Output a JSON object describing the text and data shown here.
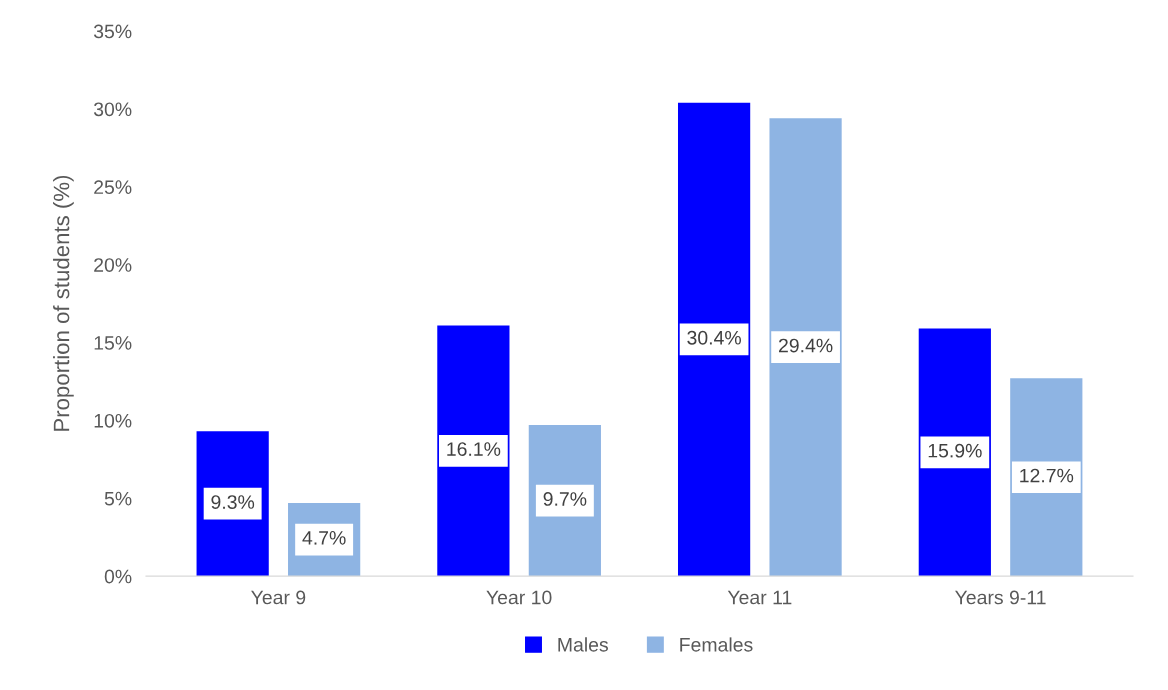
{
  "chart_data": {
    "type": "bar",
    "ylabel": "Proportion of students (%)",
    "categories": [
      "Year 9",
      "Year 10",
      "Year 11",
      "Years 9-11"
    ],
    "series": [
      {
        "name": "Males",
        "color": "#0000ff",
        "values": [
          9.3,
          16.1,
          30.4,
          15.9
        ],
        "value_labels": [
          "9.3%",
          "16.1%",
          "30.4%",
          "15.9%"
        ]
      },
      {
        "name": "Females",
        "color": "#8eb4e3",
        "values": [
          4.7,
          9.7,
          29.4,
          12.7
        ],
        "value_labels": [
          "4.7%",
          "9.7%",
          "29.4%",
          "12.7%"
        ]
      }
    ],
    "ylim": [
      0,
      35
    ],
    "yticks": [
      {
        "value": 0,
        "label": "0%"
      },
      {
        "value": 5,
        "label": "5%"
      },
      {
        "value": 10,
        "label": "10%"
      },
      {
        "value": 15,
        "label": "15%"
      },
      {
        "value": 20,
        "label": "20%"
      },
      {
        "value": 25,
        "label": "25%"
      },
      {
        "value": 30,
        "label": "30%"
      },
      {
        "value": 35,
        "label": "35%"
      }
    ],
    "grid": false,
    "legend": "bottom"
  }
}
